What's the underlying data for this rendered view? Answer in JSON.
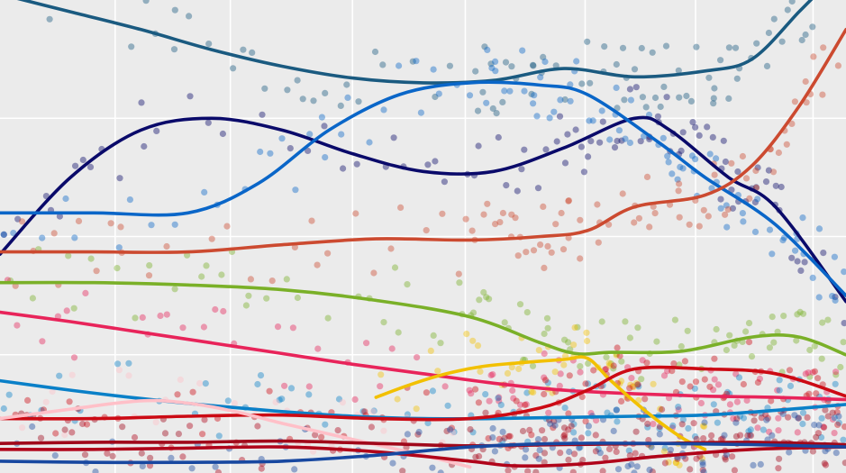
{
  "chart_data": {
    "type": "scatter",
    "title": "",
    "xlabel": "",
    "ylabel": "",
    "x_range": [
      0,
      36
    ],
    "ylim": [
      0,
      40
    ],
    "x_gridlines": [
      4.9,
      9.8,
      15,
      19.8,
      24.9,
      29.6,
      34.6
    ],
    "y_gridlines": [
      10,
      20,
      30
    ],
    "grid": true,
    "legend": "none",
    "smoothing": "loess",
    "series": [
      {
        "color": "#1a5a80",
        "x": [
          0,
          3,
          6,
          9,
          12,
          15,
          18,
          21,
          24,
          27,
          30,
          32,
          34,
          35
        ],
        "values": [
          40.5,
          39.0,
          37.5,
          35.8,
          34.4,
          33.4,
          33.0,
          33.2,
          34.2,
          33.5,
          34.0,
          35.0,
          39.0,
          41.0
        ]
      },
      {
        "color": "#0a0a6a",
        "x": [
          0,
          3,
          6,
          9,
          12,
          15,
          18,
          21,
          24,
          27,
          28.5,
          31,
          33,
          36
        ],
        "values": [
          18.5,
          25.0,
          29.0,
          30.0,
          29.0,
          27.0,
          25.5,
          25.5,
          27.5,
          30.0,
          29.0,
          25.0,
          22.5,
          14.5
        ]
      },
      {
        "color": "#0a66c8",
        "x": [
          0,
          4,
          8,
          11,
          14,
          17,
          20,
          23,
          25,
          28,
          30,
          33,
          36
        ],
        "values": [
          22.0,
          22.0,
          22.0,
          24.5,
          29.0,
          32.0,
          33.0,
          32.8,
          32.0,
          28.0,
          25.0,
          21.0,
          15.0
        ]
      },
      {
        "color": "#cc4a30",
        "x": [
          0,
          4,
          8,
          12,
          16,
          20,
          23,
          25,
          27,
          30,
          32,
          34,
          36
        ],
        "values": [
          18.7,
          18.7,
          18.7,
          19.3,
          19.8,
          19.7,
          20.0,
          20.5,
          22.5,
          23.5,
          26.0,
          31.0,
          37.5
        ]
      },
      {
        "color": "#7ab028",
        "x": [
          0,
          4,
          8,
          12,
          16,
          20,
          23,
          24.5,
          26,
          29,
          32,
          34,
          36
        ],
        "values": [
          16.1,
          16.1,
          15.9,
          15.5,
          14.6,
          13.2,
          11.0,
          10.1,
          10.2,
          10.3,
          11.5,
          11.5,
          10.0
        ]
      },
      {
        "color": "#e8245a",
        "x": [
          0,
          3,
          6,
          9,
          12,
          15,
          18,
          21,
          24,
          27,
          30,
          33,
          36
        ],
        "values": [
          13.6,
          12.8,
          11.9,
          11.0,
          10.1,
          9.2,
          8.4,
          7.6,
          7.0,
          6.7,
          6.5,
          6.4,
          6.2
        ]
      },
      {
        "color": "#0a80c8",
        "x": [
          0,
          3,
          6,
          9,
          12,
          15,
          18,
          21,
          24,
          27,
          30,
          33,
          36
        ],
        "values": [
          7.8,
          7.0,
          6.3,
          5.7,
          5.2,
          4.8,
          4.6,
          4.6,
          4.7,
          4.8,
          4.9,
          5.3,
          5.8
        ]
      },
      {
        "color": "#f2c000",
        "x": [
          16,
          17.5,
          19,
          20.5,
          22,
          24,
          25,
          26,
          27.5,
          29,
          30
        ],
        "values": [
          6.4,
          7.5,
          8.4,
          9.0,
          9.3,
          9.6,
          9.7,
          7.8,
          5.2,
          3.0,
          2.0
        ]
      },
      {
        "color": "#cc0a14",
        "x": [
          0,
          4,
          8,
          12,
          16,
          20,
          23,
          25,
          27,
          30,
          33,
          36
        ],
        "values": [
          4.6,
          4.6,
          4.8,
          4.9,
          4.6,
          4.6,
          5.5,
          7.0,
          8.8,
          8.8,
          8.4,
          6.5
        ]
      },
      {
        "color": "#ffc0c8",
        "x": [
          0,
          3,
          6,
          8,
          10,
          12,
          14,
          16,
          18,
          20
        ],
        "values": [
          4.6,
          5.4,
          6.1,
          5.9,
          5.2,
          4.2,
          3.3,
          2.4,
          1.5,
          0.5
        ]
      },
      {
        "color": "#a0081a",
        "x": [
          0,
          4,
          8,
          12,
          16,
          20,
          24,
          28,
          32,
          36
        ],
        "values": [
          2.5,
          2.6,
          2.6,
          2.7,
          2.5,
          2.3,
          2.4,
          2.5,
          2.6,
          2.4
        ]
      },
      {
        "color": "#b0041a",
        "x": [
          0,
          4,
          8,
          12,
          16,
          20,
          22,
          25,
          28,
          32,
          36
        ],
        "values": [
          2.0,
          2.0,
          2.1,
          2.2,
          1.8,
          1.0,
          0.6,
          0.8,
          1.4,
          2.0,
          2.2
        ]
      },
      {
        "color": "#1848a0",
        "x": [
          0,
          4,
          8,
          12,
          16,
          20,
          24,
          28,
          32,
          36
        ],
        "values": [
          1.0,
          0.9,
          0.9,
          1.0,
          1.5,
          2.2,
          2.5,
          2.5,
          2.4,
          2.2
        ]
      }
    ]
  }
}
